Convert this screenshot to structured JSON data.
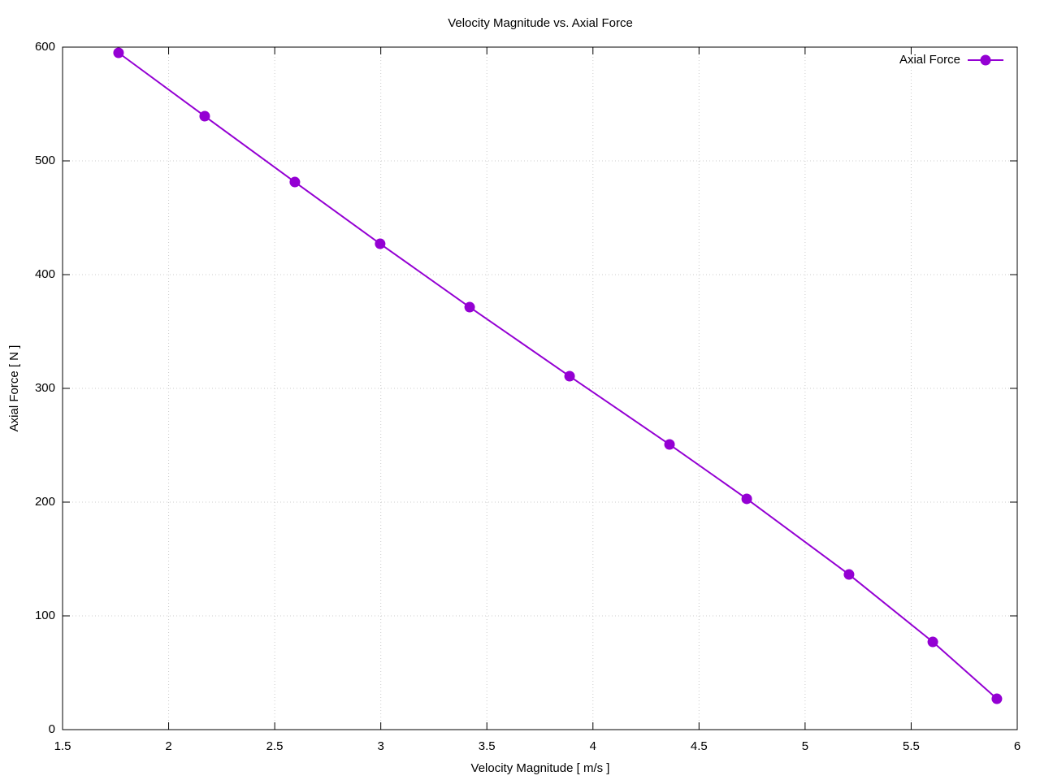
{
  "chart_data": {
    "type": "line",
    "title": "Velocity Magnitude vs. Axial Force",
    "x_label": "Velocity Magnitude [ m/s ]",
    "y_label": "Axial Force [ N ]",
    "series": [
      {
        "name": "Axial Force",
        "color": "#9400d3",
        "x": [
          1.764,
          2.17,
          2.595,
          2.997,
          3.419,
          3.89,
          4.361,
          4.725,
          5.207,
          5.602,
          5.904
        ],
        "values": [
          595,
          539.3,
          481.4,
          427.1,
          371.4,
          310.7,
          250.7,
          202.9,
          136.4,
          77.1,
          27.1
        ]
      }
    ],
    "xlim": [
      1.5,
      6
    ],
    "xticks": [
      1.5,
      2,
      2.5,
      3,
      3.5,
      4,
      4.5,
      5,
      5.5,
      6
    ],
    "ylim": [
      0,
      600
    ],
    "yticks": [
      0,
      100,
      200,
      300,
      400,
      500,
      600
    ],
    "grid": true,
    "legend": "top-right"
  }
}
